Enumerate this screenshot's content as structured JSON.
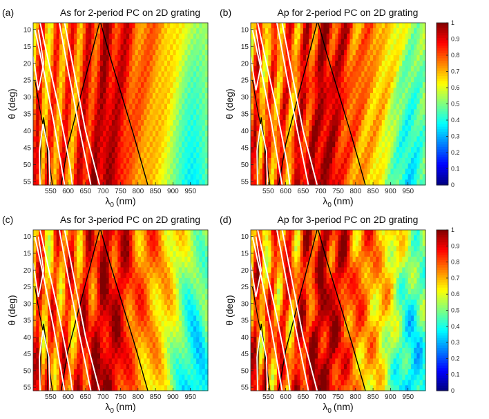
{
  "chart_data": [
    {
      "type": "heatmap",
      "panel_label": "(a)",
      "title": "As for 2-period PC on 2D grating",
      "xlabel_symbol": "λ",
      "xlabel_sub": "0",
      "xlabel_unit": "(nm)",
      "ylabel_symbol": "θ",
      "ylabel_unit": "(deg)",
      "xlim": [
        500,
        1000
      ],
      "ylim": [
        8,
        56
      ],
      "xticks": [
        550,
        600,
        650,
        700,
        750,
        800,
        850,
        900,
        950
      ],
      "yticks": [
        10,
        15,
        20,
        25,
        30,
        35,
        40,
        45,
        50,
        55
      ],
      "clim": [
        0,
        1
      ],
      "colorbar": false,
      "variant": 0
    },
    {
      "type": "heatmap",
      "panel_label": "(b)",
      "title": "Ap for 2-period PC on 2D grating",
      "xlabel_symbol": "λ",
      "xlabel_sub": "0",
      "xlabel_unit": "(nm)",
      "ylabel_symbol": "θ",
      "ylabel_unit": "(deg)",
      "xlim": [
        500,
        1000
      ],
      "ylim": [
        8,
        56
      ],
      "xticks": [
        550,
        600,
        650,
        700,
        750,
        800,
        850,
        900,
        950
      ],
      "yticks": [
        10,
        15,
        20,
        25,
        30,
        35,
        40,
        45,
        50,
        55
      ],
      "clim": [
        0,
        1
      ],
      "colorbar": true,
      "variant": 1
    },
    {
      "type": "heatmap",
      "panel_label": "(c)",
      "title": "As for 3-period PC on 2D grating",
      "xlabel_symbol": "λ",
      "xlabel_sub": "0",
      "xlabel_unit": "(nm)",
      "ylabel_symbol": "θ",
      "ylabel_unit": "(deg)",
      "xlim": [
        500,
        1000
      ],
      "ylim": [
        8,
        56
      ],
      "xticks": [
        550,
        600,
        650,
        700,
        750,
        800,
        850,
        900,
        950
      ],
      "yticks": [
        10,
        15,
        20,
        25,
        30,
        35,
        40,
        45,
        50,
        55
      ],
      "clim": [
        0,
        1
      ],
      "colorbar": false,
      "variant": 2
    },
    {
      "type": "heatmap",
      "panel_label": "(d)",
      "title": "Ap for 3-period PC on 2D grating",
      "xlabel_symbol": "λ",
      "xlabel_sub": "0",
      "xlabel_unit": "(nm)",
      "ylabel_symbol": "θ",
      "ylabel_unit": "(deg)",
      "xlim": [
        500,
        1000
      ],
      "ylim": [
        8,
        56
      ],
      "xticks": [
        550,
        600,
        650,
        700,
        750,
        800,
        850,
        900,
        950
      ],
      "yticks": [
        10,
        15,
        20,
        25,
        30,
        35,
        40,
        45,
        50,
        55
      ],
      "clim": [
        0,
        1
      ],
      "colorbar": true,
      "variant": 3
    }
  ],
  "colorbar": {
    "ticks": [
      0,
      0.1,
      0.2,
      0.3,
      0.4,
      0.5,
      0.6,
      0.7,
      0.8,
      0.9,
      1
    ],
    "tick_labels": [
      "0",
      "0.1",
      "0.2",
      "0.3",
      "0.4",
      "0.5",
      "0.6",
      "0.7",
      "0.8",
      "0.9",
      "1"
    ],
    "colormap": "jet"
  },
  "overlay_curves": {
    "white_color": "#ffffff",
    "black_color": "#000000"
  }
}
